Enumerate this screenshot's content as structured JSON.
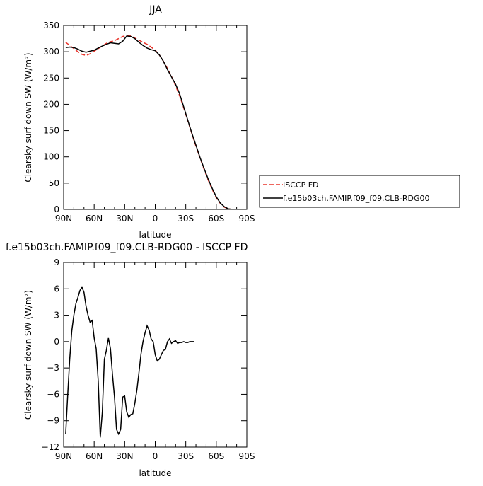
{
  "chart_data": [
    {
      "type": "line",
      "title": "JJA",
      "xlabel": "latitude",
      "ylabel": "Clearsky surf down SW (W/m²)",
      "xlim": [
        90,
        -90
      ],
      "ylim": [
        0,
        350
      ],
      "xticks": [
        90,
        60,
        30,
        0,
        -30,
        -60,
        -90
      ],
      "xtick_labels": [
        "90N",
        "60N",
        "30N",
        "0",
        "30S",
        "60S",
        "90S"
      ],
      "yticks": [
        0,
        50,
        100,
        150,
        200,
        250,
        300,
        350
      ],
      "ytick_labels": [
        "0",
        "50",
        "100",
        "150",
        "200",
        "250",
        "300",
        "350"
      ],
      "legend_position": "right",
      "series": [
        {
          "name": "ISCCP FD",
          "color": "#e8332a",
          "dash": "dashed",
          "points": [
            [
              88,
              318
            ],
            [
              84,
              312
            ],
            [
              80,
              306
            ],
            [
              76,
              300
            ],
            [
              72,
              295
            ],
            [
              68,
              293
            ],
            [
              64,
              296
            ],
            [
              60,
              301
            ],
            [
              56,
              306
            ],
            [
              52,
              311
            ],
            [
              48,
              316
            ],
            [
              44,
              319
            ],
            [
              40,
              321
            ],
            [
              36,
              325
            ],
            [
              32,
              329
            ],
            [
              28,
              331
            ],
            [
              24,
              330
            ],
            [
              20,
              326
            ],
            [
              16,
              322
            ],
            [
              12,
              318
            ],
            [
              8,
              314
            ],
            [
              4,
              309
            ],
            [
              0,
              303
            ],
            [
              -4,
              294
            ],
            [
              -8,
              282
            ],
            [
              -12,
              268
            ],
            [
              -16,
              253
            ],
            [
              -20,
              235
            ],
            [
              -24,
              216
            ],
            [
              -28,
              193
            ],
            [
              -32,
              169
            ],
            [
              -36,
              144
            ],
            [
              -40,
              120
            ],
            [
              -44,
              98
            ],
            [
              -48,
              76
            ],
            [
              -52,
              56
            ],
            [
              -56,
              38
            ],
            [
              -60,
              22
            ],
            [
              -64,
              11
            ],
            [
              -68,
              4
            ],
            [
              -72,
              1
            ],
            [
              -76,
              0
            ],
            [
              -80,
              0
            ],
            [
              -84,
              0
            ],
            [
              -88,
              0
            ]
          ]
        },
        {
          "name": "f.e15b03ch.FAMIP.f09_f09.CLB-RDG00",
          "color": "#000000",
          "dash": "solid",
          "points": [
            [
              88,
              308
            ],
            [
              84,
              309
            ],
            [
              80,
              308
            ],
            [
              76,
              305
            ],
            [
              72,
              301
            ],
            [
              68,
              299
            ],
            [
              64,
              301
            ],
            [
              60,
              303
            ],
            [
              56,
              307
            ],
            [
              52,
              311
            ],
            [
              48,
              314
            ],
            [
              44,
              317
            ],
            [
              40,
              316
            ],
            [
              36,
              315
            ],
            [
              32,
              320
            ],
            [
              28,
              330
            ],
            [
              24,
              329
            ],
            [
              20,
              325
            ],
            [
              16,
              318
            ],
            [
              12,
              312
            ],
            [
              8,
              307
            ],
            [
              4,
              304
            ],
            [
              0,
              302
            ],
            [
              -4,
              294
            ],
            [
              -8,
              282
            ],
            [
              -12,
              266
            ],
            [
              -16,
              252
            ],
            [
              -20,
              238
            ],
            [
              -24,
              220
            ],
            [
              -28,
              195
            ],
            [
              -32,
              170
            ],
            [
              -36,
              145
            ],
            [
              -40,
              122
            ],
            [
              -44,
              99
            ],
            [
              -48,
              78
            ],
            [
              -52,
              58
            ],
            [
              -56,
              40
            ],
            [
              -60,
              24
            ],
            [
              -64,
              12
            ],
            [
              -68,
              5
            ],
            [
              -72,
              1
            ],
            [
              -76,
              0
            ],
            [
              -80,
              0
            ],
            [
              -84,
              0
            ],
            [
              -88,
              0
            ]
          ]
        }
      ]
    },
    {
      "type": "line",
      "title": "f.e15b03ch.FAMIP.f09_f09.CLB-RDG00 - ISCCP FD",
      "xlabel": "latitude",
      "ylabel": "Clearsky surf down SW (W/m²)",
      "xlim": [
        90,
        -90
      ],
      "ylim": [
        -12,
        9
      ],
      "xticks": [
        90,
        60,
        30,
        0,
        -30,
        -60,
        -90
      ],
      "xtick_labels": [
        "90N",
        "60N",
        "30N",
        "0",
        "30S",
        "60S",
        "90S"
      ],
      "yticks": [
        -12,
        -9,
        -6,
        -3,
        0,
        3,
        6,
        9
      ],
      "ytick_labels": [
        "−12",
        "−9",
        "−6",
        "−3",
        "0",
        "3",
        "6",
        "9"
      ],
      "series": [
        {
          "color": "#000000",
          "dash": "solid",
          "points": [
            [
              88,
              -10.5
            ],
            [
              86,
              -6
            ],
            [
              84,
              -2
            ],
            [
              82,
              1.2
            ],
            [
              80,
              3
            ],
            [
              78,
              4.3
            ],
            [
              76,
              5
            ],
            [
              74,
              5.8
            ],
            [
              72,
              6.2
            ],
            [
              70,
              5.6
            ],
            [
              68,
              4
            ],
            [
              66,
              3
            ],
            [
              64,
              2.2
            ],
            [
              62,
              2.4
            ],
            [
              60,
              0.4
            ],
            [
              58,
              -0.8
            ],
            [
              56,
              -4.5
            ],
            [
              54,
              -10.9
            ],
            [
              52,
              -8
            ],
            [
              50,
              -2
            ],
            [
              48,
              -1
            ],
            [
              46,
              0.4
            ],
            [
              44,
              -0.8
            ],
            [
              42,
              -3.8
            ],
            [
              40,
              -6.3
            ],
            [
              38,
              -10
            ],
            [
              36,
              -10.5
            ],
            [
              34,
              -10
            ],
            [
              32,
              -6.3
            ],
            [
              30,
              -6.2
            ],
            [
              28,
              -8
            ],
            [
              26,
              -8.6
            ],
            [
              24,
              -8.3
            ],
            [
              22,
              -8.2
            ],
            [
              20,
              -7
            ],
            [
              18,
              -5.5
            ],
            [
              16,
              -3.5
            ],
            [
              14,
              -1.4
            ],
            [
              12,
              0
            ],
            [
              10,
              1
            ],
            [
              8,
              1.8
            ],
            [
              6,
              1.3
            ],
            [
              4,
              0.3
            ],
            [
              2,
              0
            ],
            [
              0,
              -1.5
            ],
            [
              -2,
              -2.2
            ],
            [
              -4,
              -2
            ],
            [
              -6,
              -1.5
            ],
            [
              -8,
              -1
            ],
            [
              -10,
              -0.9
            ],
            [
              -12,
              0
            ],
            [
              -14,
              0.3
            ],
            [
              -16,
              -0.2
            ],
            [
              -18,
              0
            ],
            [
              -20,
              0.1
            ],
            [
              -22,
              -0.2
            ],
            [
              -24,
              -0.1
            ],
            [
              -26,
              -0.1
            ],
            [
              -28,
              0
            ],
            [
              -30,
              -0.1
            ],
            [
              -32,
              -0.1
            ],
            [
              -34,
              0
            ],
            [
              -36,
              0
            ],
            [
              -38,
              0
            ]
          ]
        }
      ]
    }
  ]
}
